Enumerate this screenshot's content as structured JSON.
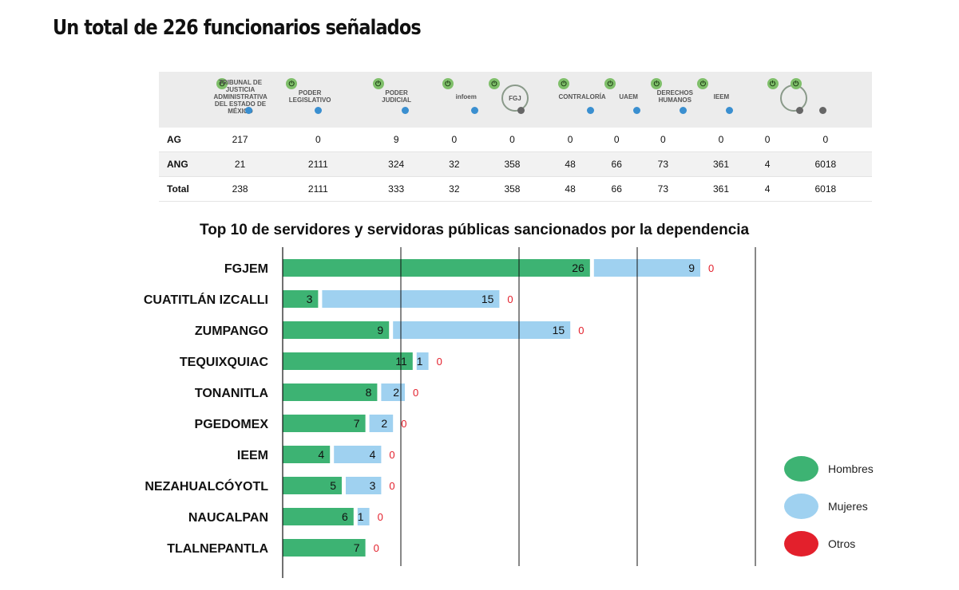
{
  "headline": "Un total de 226 funcionarios señalados",
  "summary_table": {
    "logos": [
      {
        "name": "tribunal-justicia-administrativa-logo",
        "text": "TRIBUNAL DE JUSTICIA ADMINISTRATIVA DEL ESTADO DE MÉXICO"
      },
      {
        "name": "poder-legislativo-logo",
        "text": "PODER LEGISLATIVO"
      },
      {
        "name": "poder-judicial-logo",
        "text": "PODER JUDICIAL"
      },
      {
        "name": "infoem-logo",
        "text": "infoem"
      },
      {
        "name": "fgj-logo",
        "text": "FGJ"
      },
      {
        "name": "contraloria-logo",
        "text": "CONTRALORÍA"
      },
      {
        "name": "uaem-logo",
        "text": "UAEM"
      },
      {
        "name": "derechos-humanos-logo",
        "text": "DERECHOS HUMANOS"
      },
      {
        "name": "ieem-logo",
        "text": "IEEM"
      },
      {
        "name": "justice-scale-logo",
        "text": ""
      },
      {
        "name": "estado-mexico-map-logo",
        "text": ""
      }
    ],
    "rows": [
      {
        "label": "AG",
        "values": [
          "217",
          "0",
          "9",
          "0",
          "0",
          "0",
          "0",
          "0",
          "0",
          "0",
          "0"
        ]
      },
      {
        "label": "ANG",
        "values": [
          "21",
          "2111",
          "324",
          "32",
          "358",
          "48",
          "66",
          "73",
          "361",
          "4",
          "6018"
        ]
      },
      {
        "label": "Total",
        "values": [
          "238",
          "2111",
          "333",
          "32",
          "358",
          "48",
          "66",
          "73",
          "361",
          "4",
          "6018"
        ]
      }
    ]
  },
  "chart_title": "Top 10 de servidores y servidoras públicas sancionados por la dependencia",
  "legend": [
    {
      "label": "Hombres",
      "color": "#3db373"
    },
    {
      "label": "Mujeres",
      "color": "#9fd1f0"
    },
    {
      "label": "Otros",
      "color": "#e3202c"
    }
  ],
  "chart_data": {
    "type": "bar",
    "orientation": "horizontal",
    "stacked": true,
    "title": "Top 10 de servidores y servidoras públicas sancionados por la dependencia",
    "categories": [
      "FGJEM",
      "CUATITLÁN IZCALLI",
      "ZUMPANGO",
      "TEQUIXQUIAC",
      "TONANITLA",
      "PGEDOMEX",
      "IEEM",
      "NEZAHUALCÓYOTL",
      "NAUCALPAN",
      "TLALNEPANTLA"
    ],
    "series": [
      {
        "name": "Hombres",
        "color": "#3db373",
        "values": [
          26,
          3,
          9,
          11,
          8,
          7,
          4,
          5,
          6,
          7
        ]
      },
      {
        "name": "Mujeres",
        "color": "#9fd1f0",
        "values": [
          9,
          15,
          15,
          1,
          2,
          2,
          4,
          3,
          1,
          0
        ]
      },
      {
        "name": "Otros",
        "color": "#e3202c",
        "values": [
          0,
          0,
          0,
          0,
          0,
          0,
          0,
          0,
          0,
          0
        ]
      }
    ],
    "xlim": [
      0,
      40
    ],
    "gridlines": [
      10,
      20,
      30,
      40
    ],
    "legend_position": "right"
  }
}
